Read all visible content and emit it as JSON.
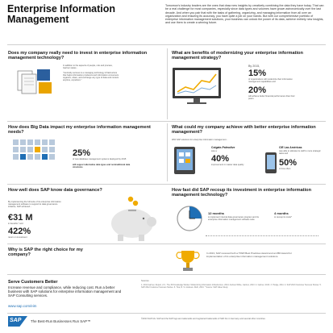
{
  "header": {
    "title_line1": "Enterprise Information",
    "title_line2": "Management",
    "intro": "Tomorrow's industry leaders are the ones that draw new insights by creatively combining the data they have today. That can be a real challenge for most companies, especially since data types and volumes have grown astronomically over the last decade. And when you pair that with the tasks of gathering, organizing, and managing information from all over an organization and ensuring its accuracy, you have quite a job on your hands. But with our comprehensive portfolio of enterprise information management solutions, your business can unlock the power of its data, achieve entirely new insights, and use them to create a winning future."
  },
  "sections": {
    "need": {
      "question": "Does my company really need to invest in enterprise information management technology?",
      "note1": "In addition to the aspects of people, role and process, Gartner states...",
      "note2": "\"Centrally success is a managing technology infrastructure that helps information producers and information consumers organize, share, and exchange any type of data and content anytime, anywhere.\""
    },
    "benefits": {
      "question": "What are benefits of modernizing your enterprise information management strategy?",
      "by2015": "By 2015,",
      "stat1_value": "15%",
      "stat1_text": "of organizations will modernize their information management capabilities and",
      "stat2_value": "20%",
      "stat2_text": "will achieve better financial performance than their peers."
    },
    "bigdata": {
      "question": "How does Big Data impact my enterprise information management needs?",
      "stat1_value": "25%",
      "stat1_text": "of new database management systems deployed by 2015",
      "stat2_lead": "will support alternative data types and nontraditional data structures"
    },
    "achieve": {
      "question": "What could my company achieve with better enterprise information management?",
      "intro": "With SAP solutions for enterprise information management...",
      "c1_name": "Colgate-Palmolive",
      "c1_lead": "saw a",
      "c1_value": "40%",
      "c1_text": "improvement in master data quality",
      "c2_name": "CIE Las Américas",
      "c2_text1": "was able to allocate its staff to more strategic tasks and",
      "c2_value": "50%",
      "c2_text2": "of time often"
    },
    "governance": {
      "question": "How well does SAP know data governance?",
      "intro": "By implementing the full suite of its enterprise information management software to support its data governance initiative, SAP achieved...",
      "value1": "€31 M",
      "label1": "in benefits,* and",
      "value2": "422%",
      "label2": "return on investment"
    },
    "recoup": {
      "question": "How fast did SAP recoup its investment in enterprise information management technology?",
      "m12_value": "12 months",
      "m12_text": "to implement internal data governance program and its enterprise information management software suite",
      "m4_value": "4 months",
      "m4_text": "to recoup its costs*"
    },
    "why": {
      "question": "Why is SAP the right choice for my company?",
      "text": "In 2013, SAP received both a TDWI Best Practices Award and an IBD Award for implementation of its enterprise information management solutions."
    }
  },
  "footer": {
    "serve_title": "Serve Customers Better",
    "serve_text": "Increase revenue and compliance, while reducing cost. Run a better business with SAP solutions for enterprise information management and SAP Consulting services.",
    "url": "www.sap.com/eim",
    "sources_label": "Sources:",
    "sources_text": "1. 2011 Gartner, Report, 2.0 - The 3D Knowledge Worker. Modernizing Information Infrastructure. 2014; Andrew White, Gartner, 2013. 2. Gartner, 2013. 3. Hodge, 2011. 4. SAP 2013 Customer Success Stories. 5. SAP 2012 Customer Success Stories. 6. Tina, R. S. Andrews. Ruth, 2013. * Source: SAP Value Study.",
    "brand": "SAP",
    "tagline": "The Best-Run Businesses Run SAP™",
    "copyright": "©2013 SAP AG. SAP and the SAP logo are trademarks and registered trademarks of SAP AG in Germany and several other countries."
  },
  "colors": {
    "accent": "#f0ab00",
    "brand_blue": "#1f6fb5",
    "text": "#222222"
  }
}
